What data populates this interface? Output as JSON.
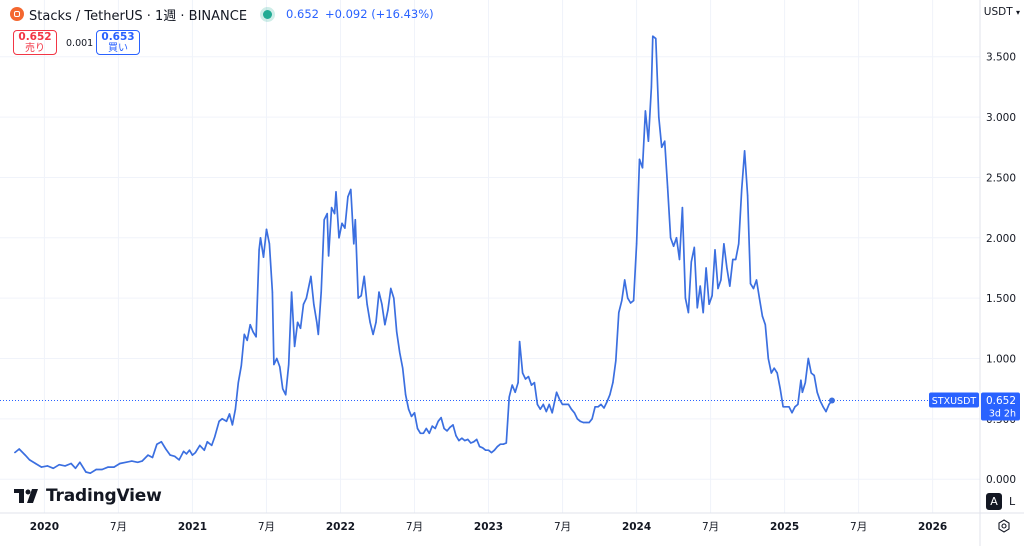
{
  "header": {
    "title": "Stacks / TetherUS · 1週 · BINANCE",
    "price": "0.652",
    "change": "+0.092 (+16.43%)"
  },
  "trade": {
    "sell_price": "0.652",
    "sell_label": "売り",
    "spread": "0.001",
    "buy_price": "0.653",
    "buy_label": "買い"
  },
  "currency": "USDT",
  "logo_text": "TradingView",
  "controls": {
    "auto_label": "A",
    "log_label": "L"
  },
  "colors": {
    "line": "#3b6fe0",
    "badge": "#2962ff",
    "grid": "#f0f3fa",
    "text": "#131722"
  },
  "chart_data": {
    "type": "line",
    "series": [
      {
        "values": [
          [
            2019.8,
            0.22
          ],
          [
            2019.83,
            0.25
          ],
          [
            2019.87,
            0.2
          ],
          [
            2019.9,
            0.16
          ],
          [
            2019.94,
            0.13
          ],
          [
            2019.98,
            0.1
          ],
          [
            2020.02,
            0.11
          ],
          [
            2020.06,
            0.09
          ],
          [
            2020.1,
            0.12
          ],
          [
            2020.14,
            0.11
          ],
          [
            2020.18,
            0.13
          ],
          [
            2020.21,
            0.09
          ],
          [
            2020.24,
            0.14
          ],
          [
            2020.28,
            0.06
          ],
          [
            2020.31,
            0.05
          ],
          [
            2020.35,
            0.08
          ],
          [
            2020.39,
            0.08
          ],
          [
            2020.43,
            0.1
          ],
          [
            2020.47,
            0.1
          ],
          [
            2020.51,
            0.13
          ],
          [
            2020.55,
            0.14
          ],
          [
            2020.59,
            0.15
          ],
          [
            2020.63,
            0.14
          ],
          [
            2020.66,
            0.15
          ],
          [
            2020.7,
            0.2
          ],
          [
            2020.73,
            0.18
          ],
          [
            2020.76,
            0.29
          ],
          [
            2020.79,
            0.31
          ],
          [
            2020.82,
            0.25
          ],
          [
            2020.85,
            0.2
          ],
          [
            2020.88,
            0.19
          ],
          [
            2020.91,
            0.16
          ],
          [
            2020.94,
            0.23
          ],
          [
            2020.96,
            0.21
          ],
          [
            2020.98,
            0.24
          ],
          [
            2021.0,
            0.2
          ],
          [
            2021.02,
            0.22
          ],
          [
            2021.05,
            0.28
          ],
          [
            2021.08,
            0.24
          ],
          [
            2021.1,
            0.31
          ],
          [
            2021.13,
            0.28
          ],
          [
            2021.15,
            0.35
          ],
          [
            2021.18,
            0.48
          ],
          [
            2021.2,
            0.5
          ],
          [
            2021.23,
            0.48
          ],
          [
            2021.25,
            0.54
          ],
          [
            2021.27,
            0.45
          ],
          [
            2021.29,
            0.58
          ],
          [
            2021.31,
            0.8
          ],
          [
            2021.33,
            0.94
          ],
          [
            2021.35,
            1.2
          ],
          [
            2021.37,
            1.15
          ],
          [
            2021.39,
            1.28
          ],
          [
            2021.41,
            1.22
          ],
          [
            2021.43,
            1.18
          ],
          [
            2021.45,
            1.9
          ],
          [
            2021.46,
            2.0
          ],
          [
            2021.48,
            1.84
          ],
          [
            2021.5,
            2.07
          ],
          [
            2021.52,
            1.95
          ],
          [
            2021.54,
            1.55
          ],
          [
            2021.55,
            0.95
          ],
          [
            2021.57,
            1.0
          ],
          [
            2021.59,
            0.93
          ],
          [
            2021.61,
            0.75
          ],
          [
            2021.63,
            0.7
          ],
          [
            2021.65,
            0.95
          ],
          [
            2021.67,
            1.55
          ],
          [
            2021.69,
            1.1
          ],
          [
            2021.71,
            1.3
          ],
          [
            2021.73,
            1.25
          ],
          [
            2021.75,
            1.45
          ],
          [
            2021.77,
            1.5
          ],
          [
            2021.79,
            1.62
          ],
          [
            2021.8,
            1.68
          ],
          [
            2021.82,
            1.45
          ],
          [
            2021.84,
            1.3
          ],
          [
            2021.85,
            1.2
          ],
          [
            2021.87,
            1.55
          ],
          [
            2021.89,
            2.15
          ],
          [
            2021.91,
            2.2
          ],
          [
            2021.92,
            1.85
          ],
          [
            2021.94,
            2.25
          ],
          [
            2021.96,
            2.2
          ],
          [
            2021.97,
            2.38
          ],
          [
            2021.99,
            2.0
          ],
          [
            2022.01,
            2.12
          ],
          [
            2022.03,
            2.08
          ],
          [
            2022.05,
            2.34
          ],
          [
            2022.07,
            2.4
          ],
          [
            2022.09,
            1.95
          ],
          [
            2022.1,
            2.15
          ],
          [
            2022.12,
            1.5
          ],
          [
            2022.14,
            1.52
          ],
          [
            2022.16,
            1.68
          ],
          [
            2022.18,
            1.45
          ],
          [
            2022.2,
            1.3
          ],
          [
            2022.22,
            1.2
          ],
          [
            2022.24,
            1.3
          ],
          [
            2022.26,
            1.55
          ],
          [
            2022.28,
            1.45
          ],
          [
            2022.3,
            1.28
          ],
          [
            2022.32,
            1.4
          ],
          [
            2022.34,
            1.58
          ],
          [
            2022.36,
            1.5
          ],
          [
            2022.38,
            1.22
          ],
          [
            2022.4,
            1.05
          ],
          [
            2022.42,
            0.92
          ],
          [
            2022.44,
            0.7
          ],
          [
            2022.46,
            0.58
          ],
          [
            2022.48,
            0.52
          ],
          [
            2022.5,
            0.55
          ],
          [
            2022.52,
            0.42
          ],
          [
            2022.54,
            0.38
          ],
          [
            2022.56,
            0.38
          ],
          [
            2022.58,
            0.42
          ],
          [
            2022.6,
            0.38
          ],
          [
            2022.62,
            0.44
          ],
          [
            2022.64,
            0.42
          ],
          [
            2022.66,
            0.48
          ],
          [
            2022.68,
            0.51
          ],
          [
            2022.7,
            0.42
          ],
          [
            2022.72,
            0.4
          ],
          [
            2022.74,
            0.43
          ],
          [
            2022.76,
            0.45
          ],
          [
            2022.78,
            0.36
          ],
          [
            2022.8,
            0.32
          ],
          [
            2022.82,
            0.34
          ],
          [
            2022.84,
            0.32
          ],
          [
            2022.86,
            0.33
          ],
          [
            2022.88,
            0.3
          ],
          [
            2022.9,
            0.31
          ],
          [
            2022.92,
            0.33
          ],
          [
            2022.94,
            0.27
          ],
          [
            2022.96,
            0.26
          ],
          [
            2022.98,
            0.24
          ],
          [
            2023.0,
            0.24
          ],
          [
            2023.02,
            0.22
          ],
          [
            2023.04,
            0.24
          ],
          [
            2023.06,
            0.27
          ],
          [
            2023.08,
            0.29
          ],
          [
            2023.1,
            0.29
          ],
          [
            2023.12,
            0.3
          ],
          [
            2023.14,
            0.68
          ],
          [
            2023.16,
            0.78
          ],
          [
            2023.18,
            0.72
          ],
          [
            2023.2,
            0.8
          ],
          [
            2023.21,
            1.14
          ],
          [
            2023.23,
            0.88
          ],
          [
            2023.25,
            0.83
          ],
          [
            2023.27,
            0.85
          ],
          [
            2023.29,
            0.78
          ],
          [
            2023.31,
            0.8
          ],
          [
            2023.33,
            0.62
          ],
          [
            2023.35,
            0.58
          ],
          [
            2023.37,
            0.62
          ],
          [
            2023.39,
            0.56
          ],
          [
            2023.41,
            0.62
          ],
          [
            2023.43,
            0.55
          ],
          [
            2023.46,
            0.72
          ],
          [
            2023.48,
            0.66
          ],
          [
            2023.5,
            0.62
          ],
          [
            2023.52,
            0.62
          ],
          [
            2023.54,
            0.62
          ],
          [
            2023.56,
            0.58
          ],
          [
            2023.58,
            0.55
          ],
          [
            2023.6,
            0.5
          ],
          [
            2023.62,
            0.48
          ],
          [
            2023.64,
            0.47
          ],
          [
            2023.66,
            0.47
          ],
          [
            2023.68,
            0.47
          ],
          [
            2023.7,
            0.5
          ],
          [
            2023.72,
            0.6
          ],
          [
            2023.74,
            0.6
          ],
          [
            2023.76,
            0.62
          ],
          [
            2023.78,
            0.59
          ],
          [
            2023.8,
            0.64
          ],
          [
            2023.82,
            0.7
          ],
          [
            2023.84,
            0.8
          ],
          [
            2023.86,
            0.98
          ],
          [
            2023.88,
            1.38
          ],
          [
            2023.9,
            1.48
          ],
          [
            2023.92,
            1.65
          ],
          [
            2023.94,
            1.5
          ],
          [
            2023.96,
            1.46
          ],
          [
            2023.98,
            1.48
          ],
          [
            2024.0,
            1.95
          ],
          [
            2024.02,
            2.65
          ],
          [
            2024.04,
            2.58
          ],
          [
            2024.06,
            3.05
          ],
          [
            2024.08,
            2.8
          ],
          [
            2024.1,
            3.25
          ],
          [
            2024.11,
            3.67
          ],
          [
            2024.13,
            3.65
          ],
          [
            2024.15,
            3.0
          ],
          [
            2024.17,
            2.75
          ],
          [
            2024.19,
            2.8
          ],
          [
            2024.21,
            2.42
          ],
          [
            2024.23,
            2.0
          ],
          [
            2024.25,
            1.93
          ],
          [
            2024.27,
            2.0
          ],
          [
            2024.29,
            1.82
          ],
          [
            2024.31,
            2.25
          ],
          [
            2024.33,
            1.5
          ],
          [
            2024.35,
            1.38
          ],
          [
            2024.37,
            1.8
          ],
          [
            2024.39,
            1.92
          ],
          [
            2024.41,
            1.42
          ],
          [
            2024.43,
            1.6
          ],
          [
            2024.45,
            1.38
          ],
          [
            2024.47,
            1.75
          ],
          [
            2024.49,
            1.45
          ],
          [
            2024.51,
            1.52
          ],
          [
            2024.53,
            1.9
          ],
          [
            2024.55,
            1.58
          ],
          [
            2024.57,
            1.65
          ],
          [
            2024.59,
            1.95
          ],
          [
            2024.61,
            1.75
          ],
          [
            2024.63,
            1.6
          ],
          [
            2024.65,
            1.82
          ],
          [
            2024.67,
            1.82
          ],
          [
            2024.69,
            1.95
          ],
          [
            2024.71,
            2.4
          ],
          [
            2024.73,
            2.72
          ],
          [
            2024.75,
            2.35
          ],
          [
            2024.77,
            1.62
          ],
          [
            2024.79,
            1.58
          ],
          [
            2024.81,
            1.65
          ],
          [
            2024.83,
            1.5
          ],
          [
            2024.85,
            1.35
          ],
          [
            2024.87,
            1.28
          ],
          [
            2024.89,
            1.0
          ],
          [
            2024.91,
            0.88
          ],
          [
            2024.93,
            0.92
          ],
          [
            2024.95,
            0.88
          ],
          [
            2024.97,
            0.75
          ],
          [
            2024.99,
            0.6
          ],
          [
            2025.01,
            0.6
          ],
          [
            2025.03,
            0.6
          ],
          [
            2025.05,
            0.55
          ],
          [
            2025.07,
            0.6
          ],
          [
            2025.09,
            0.62
          ],
          [
            2025.11,
            0.82
          ],
          [
            2025.12,
            0.72
          ],
          [
            2025.14,
            0.8
          ],
          [
            2025.16,
            1.0
          ],
          [
            2025.18,
            0.88
          ],
          [
            2025.2,
            0.86
          ],
          [
            2025.22,
            0.72
          ],
          [
            2025.24,
            0.65
          ],
          [
            2025.26,
            0.6
          ],
          [
            2025.28,
            0.56
          ],
          [
            2025.3,
            0.62
          ],
          [
            2025.32,
            0.652
          ]
        ]
      }
    ],
    "x_tick_labels": [
      "2020",
      "7月",
      "2021",
      "7月",
      "2022",
      "7月",
      "2023",
      "7月",
      "2024",
      "7月",
      "2025",
      "7月",
      "2026"
    ],
    "x_tick_values": [
      2020.0,
      2020.5,
      2021.0,
      2021.5,
      2022.0,
      2022.5,
      2023.0,
      2023.5,
      2024.0,
      2024.5,
      2025.0,
      2025.5,
      2026.0
    ],
    "y_tick_labels": [
      "0.000",
      "0.500",
      "1.000",
      "1.500",
      "2.000",
      "2.500",
      "3.000",
      "3.500"
    ],
    "y_tick_values": [
      0,
      0.5,
      1.0,
      1.5,
      2.0,
      2.5,
      3.0,
      3.5
    ],
    "xlim": [
      2019.7,
      2026.32
    ],
    "ylim": [
      -0.28,
      3.97
    ],
    "grid": true,
    "last_value_label": "STXUSDT",
    "last_value": "0.652",
    "last_value_sub": "3d 2h"
  }
}
